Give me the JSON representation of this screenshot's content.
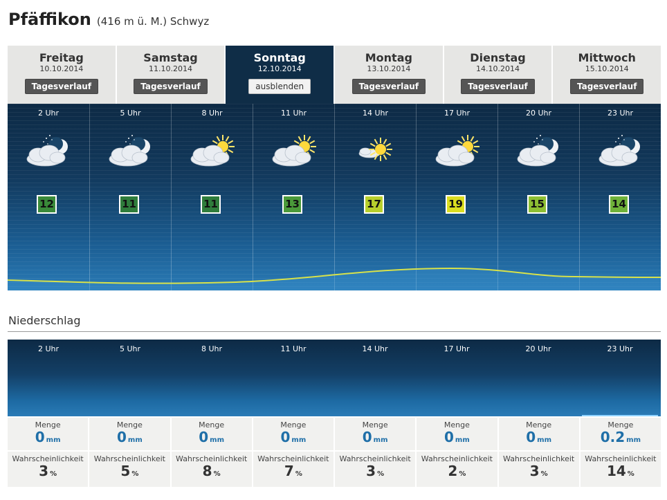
{
  "location": {
    "name": "Pfäffikon",
    "details": "(416 m ü. M.) Schwyz"
  },
  "days": [
    {
      "name": "Freitag",
      "date": "10.10.2014",
      "button": "Tagesverlauf",
      "active": false
    },
    {
      "name": "Samstag",
      "date": "11.10.2014",
      "button": "Tagesverlauf",
      "active": false
    },
    {
      "name": "Sonntag",
      "date": "12.10.2014",
      "button": "ausblenden",
      "active": true
    },
    {
      "name": "Montag",
      "date": "13.10.2014",
      "button": "Tagesverlauf",
      "active": false
    },
    {
      "name": "Dienstag",
      "date": "14.10.2014",
      "button": "Tagesverlauf",
      "active": false
    },
    {
      "name": "Mittwoch",
      "date": "15.10.2014",
      "button": "Tagesverlauf",
      "active": false
    }
  ],
  "hourly": [
    {
      "hour": "2 Uhr",
      "icon": "night-cloudy-moon-icon",
      "temp": "12",
      "color": "#3a8a3a"
    },
    {
      "hour": "5 Uhr",
      "icon": "night-cloudy-moon-icon",
      "temp": "11",
      "color": "#2f7d3c"
    },
    {
      "hour": "8 Uhr",
      "icon": "cloudy-sun-icon",
      "temp": "11",
      "color": "#2f7d3c"
    },
    {
      "hour": "11 Uhr",
      "icon": "cloudy-sun-icon",
      "temp": "13",
      "color": "#4b9a3a"
    },
    {
      "hour": "14 Uhr",
      "icon": "sun-light-cloud-icon",
      "temp": "17",
      "color": "#b7cf2c"
    },
    {
      "hour": "17 Uhr",
      "icon": "cloudy-sun-icon",
      "temp": "19",
      "color": "#dbdd20"
    },
    {
      "hour": "20 Uhr",
      "icon": "night-cloudy-moon-icon",
      "temp": "15",
      "color": "#8dbf33"
    },
    {
      "hour": "23 Uhr",
      "icon": "night-cloudy-moon-icon",
      "temp": "14",
      "color": "#6fb23a"
    }
  ],
  "precipitation": {
    "title": "Niederschlag",
    "hours": [
      "2 Uhr",
      "5 Uhr",
      "8 Uhr",
      "11 Uhr",
      "14 Uhr",
      "17 Uhr",
      "20 Uhr",
      "23 Uhr"
    ],
    "menge_label": "Menge",
    "menge_unit": "mm",
    "prob_label": "Wahrscheinlichkeit",
    "prob_unit": "%",
    "amounts": [
      "0",
      "0",
      "0",
      "0",
      "0",
      "0",
      "0",
      "0.2"
    ],
    "probabilities": [
      "3",
      "5",
      "8",
      "7",
      "3",
      "2",
      "3",
      "14"
    ]
  },
  "colors": {
    "header_active": "#0f2d47",
    "tab_bg": "#e6e6e4",
    "value_blue": "#1f6fa8",
    "curve": "#d8e24a"
  }
}
